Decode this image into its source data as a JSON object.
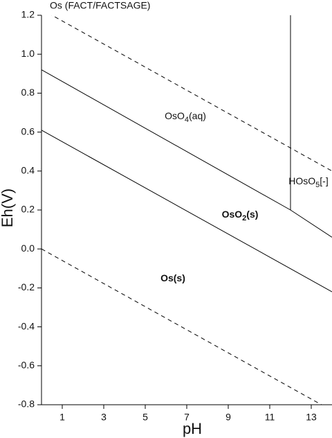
{
  "chart_data": {
    "type": "line",
    "title": "Os (FACT/FACTSAGE)",
    "x_label": "pH",
    "y_label": "Eh(V)",
    "xlim": [
      0,
      14
    ],
    "ylim": [
      -0.8,
      1.2
    ],
    "xticks": [
      1,
      3,
      5,
      7,
      9,
      11,
      13
    ],
    "yticks": [
      {
        "value": 1.2,
        "label": "1.2"
      },
      {
        "value": 1,
        "label": "1.0"
      },
      0.8,
      0.6,
      0.4,
      0.2,
      {
        "value": 0,
        "label": "0.0"
      },
      -0.2,
      -0.4,
      -0.6,
      -0.8
    ],
    "lines": [
      {
        "style": "dashed",
        "x": [
          0,
          14
        ],
        "y": [
          1.23,
          0.4
        ]
      },
      {
        "style": "dashed",
        "x": [
          0,
          14
        ],
        "y": [
          0,
          -0.83
        ]
      },
      {
        "style": "solid",
        "x": [
          0,
          12,
          14
        ],
        "y": [
          0.92,
          0.2,
          0.06
        ]
      },
      {
        "style": "solid",
        "x": [
          0,
          14
        ],
        "y": [
          0.61,
          -0.22
        ]
      },
      {
        "style": "solid",
        "x": [
          12,
          12
        ],
        "y": [
          0.2,
          1.2
        ]
      }
    ],
    "regions": [
      {
        "parts": [
          "OsO",
          "4",
          "(aq)"
        ],
        "bold": false
      },
      {
        "parts": [
          "HOsO",
          "5",
          "[-]"
        ],
        "bold": false
      },
      {
        "parts": [
          "OsO",
          "2",
          "(s)"
        ],
        "bold": true
      },
      {
        "parts": [
          "Os(s)"
        ],
        "bold": true
      }
    ]
  }
}
